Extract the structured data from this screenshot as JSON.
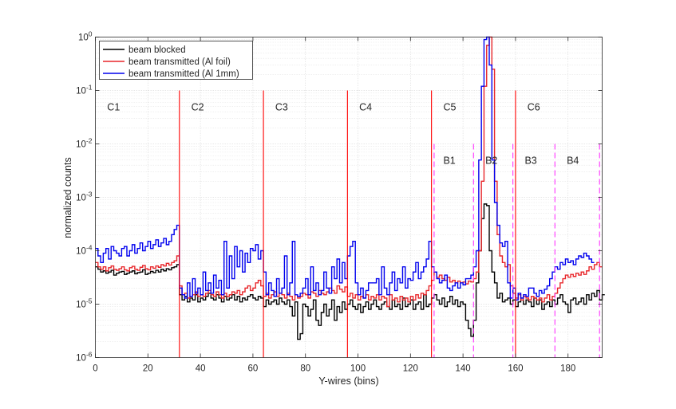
{
  "chart_data": {
    "type": "line",
    "style": "stairs",
    "xlabel": "Y-wires (bins)",
    "ylabel": "normalized counts",
    "xlim": [
      0,
      193
    ],
    "ylim": [
      1e-06,
      1
    ],
    "yscale": "log",
    "grid": true,
    "legend_position": "top-left",
    "x_ticks": [
      0,
      20,
      40,
      60,
      80,
      100,
      120,
      140,
      160,
      180
    ],
    "y_ticks": [
      {
        "value": 1e-06,
        "mantissa": "10",
        "exponent": "-6"
      },
      {
        "value": 1e-05,
        "mantissa": "10",
        "exponent": "-5"
      },
      {
        "value": 0.0001,
        "mantissa": "10",
        "exponent": "-4"
      },
      {
        "value": 0.001,
        "mantissa": "10",
        "exponent": "-3"
      },
      {
        "value": 0.01,
        "mantissa": "10",
        "exponent": "-2"
      },
      {
        "value": 0.1,
        "mantissa": "10",
        "exponent": "-1"
      },
      {
        "value": 1,
        "mantissa": "10",
        "exponent": "0"
      }
    ],
    "series": [
      {
        "name": "beam blocked",
        "color": "#000000",
        "values": [
          5e-05,
          4.5e-05,
          4e-05,
          4.2e-05,
          3.8e-05,
          4e-05,
          4.3e-05,
          3.5e-05,
          3.8e-05,
          4e-05,
          4.1e-05,
          3.6e-05,
          3.8e-05,
          4e-05,
          4.2e-05,
          3.7e-05,
          3.9e-05,
          4e-05,
          4.4e-05,
          3.6e-05,
          3.8e-05,
          4.1e-05,
          3.9e-05,
          4.3e-05,
          4e-05,
          4.5e-05,
          4.2e-05,
          4.6e-05,
          4.4e-05,
          4.8e-05,
          5e-05,
          5.5e-05,
          1.5e-05,
          1.2e-05,
          1.4e-05,
          1.1e-05,
          1.3e-05,
          1.2e-05,
          1.5e-05,
          1.1e-05,
          1.3e-05,
          1.2e-05,
          1.4e-05,
          1.6e-05,
          1.3e-05,
          1.2e-05,
          1.5e-05,
          1.3e-05,
          1.1e-05,
          1.4e-05,
          1.2e-05,
          1.3e-05,
          1.5e-05,
          1.2e-05,
          1.4e-05,
          1.1e-05,
          1.3e-05,
          1.2e-05,
          1.4e-05,
          1.5e-05,
          1.3e-05,
          1.2e-05,
          1.4e-05,
          1.3e-05,
          9e-06,
          1.2e-05,
          1e-05,
          1.1e-05,
          1.2e-05,
          1e-05,
          1.3e-05,
          1.1e-05,
          1e-05,
          1.2e-05,
          9e-06,
          6e-06,
          1.1e-05,
          2.2e-06,
          2.8e-06,
          1e-05,
          9e-06,
          6e-06,
          8e-06,
          1.2e-05,
          5e-06,
          4e-06,
          7e-06,
          1e-05,
          6e-06,
          8e-06,
          1.2e-05,
          5e-06,
          9e-06,
          7e-06,
          1.1e-05,
          8e-06,
          1e-05,
          1.2e-05,
          9e-06,
          8e-06,
          1e-05,
          7e-06,
          9e-06,
          1.1e-05,
          8e-06,
          1e-05,
          1.2e-05,
          9e-06,
          8e-06,
          1e-05,
          1.1e-05,
          9e-06,
          8e-06,
          1.2e-05,
          9e-06,
          1e-05,
          8e-06,
          1.3e-05,
          9e-06,
          1e-05,
          1.2e-05,
          8e-06,
          1e-05,
          1.1e-05,
          8e-06,
          1.5e-05,
          9e-06,
          1e-05,
          1.3e-05,
          1.5e-05,
          1.2e-05,
          1e-05,
          1.3e-05,
          9e-06,
          1.1e-05,
          1.4e-05,
          1e-05,
          1.2e-05,
          9e-06,
          1.1e-05,
          1e-05,
          5e-06,
          3.5e-06,
          2.5e-06,
          5e-06,
          2.5e-05,
          0.0001,
          0.0004,
          0.00075,
          0.0007,
          0.0001,
          4e-05,
          2.5e-05,
          1.3e-05,
          1.6e-05,
          1.1e-05,
          1.2e-05,
          1.3e-05,
          1e-05,
          1.2e-05,
          9e-06,
          1.1e-05,
          1.3e-05,
          1e-05,
          1.2e-05,
          1.1e-05,
          9e-06,
          1.3e-05,
          1e-05,
          1.2e-05,
          8e-06,
          1e-05,
          1.1e-05,
          9e-06,
          1.2e-05,
          1e-05,
          1.3e-05,
          1.5e-05,
          1.1e-05,
          1e-05,
          7e-06,
          1.2e-05,
          1.3e-05,
          1e-05,
          1.1e-05,
          1.3e-05,
          1e-05,
          1.5e-05,
          1.2e-05,
          1.6e-05,
          1.4e-05,
          1.8e-05,
          1.2e-05,
          1.5e-05
        ]
      },
      {
        "name": "beam transmitted (Al foil)",
        "color": "#e8262a",
        "values": [
          6e-05,
          5e-05,
          4.5e-05,
          5e-05,
          4.2e-05,
          4.8e-05,
          5.2e-05,
          4.5e-05,
          4.3e-05,
          4.6e-05,
          5e-05,
          4.4e-05,
          4.2e-05,
          4.8e-05,
          5.1e-05,
          4.5e-05,
          4.3e-05,
          4.9e-05,
          5.3e-05,
          4.6e-05,
          4.4e-05,
          5e-05,
          4.7e-05,
          5.2e-05,
          4.9e-05,
          5.5e-05,
          5.2e-05,
          5.8e-05,
          5.4e-05,
          6e-05,
          6.5e-05,
          8e-05,
          2.2e-05,
          1.5e-05,
          1.6e-05,
          1.3e-05,
          1.4e-05,
          1.5e-05,
          1.7e-05,
          1.4e-05,
          1.5e-05,
          1.4e-05,
          1.6e-05,
          1.8e-05,
          1.5e-05,
          1.4e-05,
          1.7e-05,
          1.5e-05,
          1.3e-05,
          1.6e-05,
          1.4e-05,
          1.5e-05,
          1.7e-05,
          1.6e-05,
          1.8e-05,
          1.5e-05,
          1.7e-05,
          2e-05,
          2.2e-05,
          1.8e-05,
          2e-05,
          2.5e-05,
          2.8e-05,
          2.2e-05,
          1.4e-05,
          1.6e-05,
          1.3e-05,
          1.5e-05,
          1.7e-05,
          1.4e-05,
          1.6e-05,
          1.5e-05,
          1.3e-05,
          1.6e-05,
          1.4e-05,
          1.2e-05,
          1.5e-05,
          1.3e-05,
          1.4e-05,
          1.6e-05,
          1.5e-05,
          1.3e-05,
          1.7e-05,
          1.6e-05,
          1.4e-05,
          1.8e-05,
          1.6e-05,
          1.5e-05,
          1.7e-05,
          2e-05,
          1.8e-05,
          1.6e-05,
          2.2e-05,
          1.9e-05,
          1.7e-05,
          2.1e-05,
          1.4e-05,
          1.6e-05,
          1.3e-05,
          1.5e-05,
          1.2e-05,
          1.4e-05,
          1.3e-05,
          1.5e-05,
          1.2e-05,
          1.4e-05,
          1.3e-05,
          1.5e-05,
          1.2e-05,
          1.4e-05,
          1.3e-05,
          9e-06,
          1.5e-05,
          1.2e-05,
          1.3e-05,
          1.1e-05,
          1.4e-05,
          1.2e-05,
          1.3e-05,
          1.1e-05,
          1.4e-05,
          1.2e-05,
          1.5e-05,
          1.3e-05,
          1.6e-05,
          1.5e-05,
          1.8e-05,
          2.2e-05,
          2.8e-05,
          4e-05,
          3.2e-05,
          3.5e-05,
          3e-05,
          2.8e-05,
          3.2e-05,
          2.6e-05,
          2.8e-05,
          2.5e-05,
          2.7e-05,
          2.5e-05,
          2.6e-05,
          2.4e-05,
          2.7e-05,
          2.6e-05,
          3e-05,
          4e-05,
          0.0001,
          0.002,
          0.12,
          0.7,
          1.0,
          0.25,
          0.002,
          0.0002,
          8e-05,
          6e-05,
          5e-05,
          5.5e-05,
          2.2e-05,
          1.6e-05,
          1.3e-05,
          1.5e-05,
          1.2e-05,
          1.4e-05,
          1.3e-05,
          1.2e-05,
          1.4e-05,
          1.3e-05,
          1.2e-05,
          1.3e-05,
          1.1e-05,
          1.3e-05,
          1.5e-05,
          1.2e-05,
          1.4e-05,
          1.6e-05,
          2e-05,
          2.5e-05,
          3e-05,
          3.5e-05,
          3.2e-05,
          3.6e-05,
          3.3e-05,
          3.8e-05,
          3.5e-05,
          4e-05,
          3.6e-05,
          4.2e-05,
          5e-05,
          4.5e-05,
          5.5e-05,
          6e-05,
          5e-05
        ]
      },
      {
        "name": "beam transmitted (Al 1mm)",
        "color": "#0000ee",
        "values": [
          0.00011,
          8e-05,
          6e-05,
          9e-05,
          0.00011,
          7e-05,
          0.00012,
          0.0001,
          9e-05,
          8e-05,
          0.00011,
          0.00012,
          8e-05,
          0.0001,
          0.00013,
          9e-05,
          0.00011,
          0.00014,
          0.0001,
          0.00012,
          0.00015,
          0.00011,
          0.00013,
          0.00016,
          0.00012,
          0.00014,
          0.00017,
          0.00013,
          0.00015,
          0.0002,
          0.00025,
          0.0003,
          2e-05,
          1.5e-05,
          1.3e-05,
          2.5e-05,
          1.4e-05,
          3e-05,
          1.6e-05,
          2e-05,
          1.5e-05,
          4e-05,
          1.8e-05,
          2.5e-05,
          1.6e-05,
          3.5e-05,
          2e-05,
          2.8e-05,
          1.5e-05,
          0.00015,
          2e-05,
          8e-05,
          3e-05,
          0.00012,
          5e-05,
          0.0001,
          4e-05,
          9e-05,
          6e-05,
          0.00011,
          0.0001,
          0.00013,
          7e-05,
          0.0001,
          4e-05,
          1.5e-05,
          2.5e-05,
          1.8e-05,
          1.4e-05,
          3e-05,
          1.6e-05,
          2e-05,
          8e-05,
          1.5e-05,
          2.5e-05,
          0.00015,
          1.5e-05,
          1.4e-05,
          1.6e-05,
          2e-05,
          3e-05,
          1.5e-05,
          5e-05,
          1.8e-05,
          2.5e-05,
          1.5e-05,
          1.8e-05,
          4e-05,
          2e-05,
          1.6e-05,
          5e-05,
          3e-05,
          7e-05,
          2.5e-05,
          6e-05,
          3e-05,
          8e-05,
          0.00012,
          0.00015,
          2.5e-05,
          1.5e-05,
          2e-05,
          1.3e-05,
          1.8e-05,
          2.5e-05,
          2.5e-05,
          2.5e-05,
          3e-05,
          1.5e-05,
          5e-05,
          2e-05,
          1.5e-05,
          2.5e-05,
          4e-05,
          1.8e-05,
          3e-05,
          2.5e-05,
          5e-05,
          2e-05,
          3e-05,
          2.8e-05,
          4e-05,
          6e-05,
          3e-05,
          4e-05,
          5e-05,
          7e-05,
          0.00015,
          5e-05,
          4e-05,
          3e-05,
          2.5e-05,
          2.8e-05,
          3.5e-05,
          2e-05,
          1.8e-05,
          2.2e-05,
          2.5e-05,
          2e-05,
          2.5e-05,
          2.3e-05,
          3e-05,
          3e-05,
          3.5e-05,
          5e-05,
          0.0001,
          0.005,
          0.12,
          0.9,
          1.0,
          0.3,
          0.005,
          0.0008,
          0.0003,
          0.00014,
          0.00012,
          0.00015,
          2.5e-05,
          1.3e-05,
          2e-05,
          1.2e-05,
          1.6e-05,
          1.3e-05,
          1.5e-05,
          1.4e-05,
          2e-05,
          2e-05,
          1.6e-05,
          1.4e-05,
          1.8e-05,
          1.6e-05,
          1.9e-05,
          2.2e-05,
          3e-05,
          4e-05,
          5e-05,
          4.5e-05,
          6e-05,
          5.5e-05,
          7e-05,
          6e-05,
          6.5e-05,
          5.5e-05,
          7e-05,
          8e-05,
          7.5e-05,
          9e-05,
          8e-05,
          7e-05,
          6e-05
        ]
      }
    ],
    "chambers": {
      "boundaries": [
        32,
        64,
        96,
        128,
        160
      ],
      "color": "#ff0000",
      "labels": [
        {
          "text": "C1",
          "x": 4.5
        },
        {
          "text": "C2",
          "x": 36.5
        },
        {
          "text": "C3",
          "x": 68.5
        },
        {
          "text": "C4",
          "x": 100.5
        },
        {
          "text": "C5",
          "x": 132.5
        },
        {
          "text": "C6",
          "x": 164.5
        }
      ]
    },
    "boards": {
      "boundaries": [
        129,
        144,
        159,
        175,
        192
      ],
      "color": "#ff33ff",
      "labels": [
        {
          "text": "B1",
          "x": 132.5
        },
        {
          "text": "B2",
          "x": 148.5
        },
        {
          "text": "B3",
          "x": 163.5
        },
        {
          "text": "B4",
          "x": 179.5
        }
      ]
    }
  }
}
